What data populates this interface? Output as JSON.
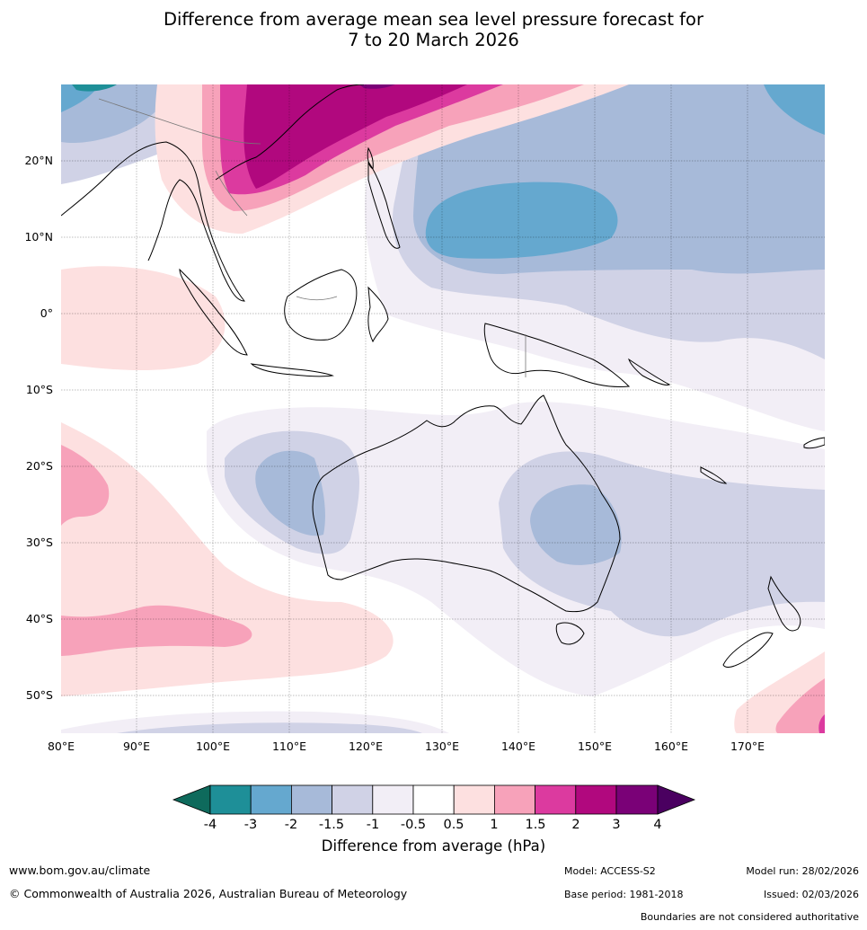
{
  "title_line1": "Difference from average mean sea level pressure forecast for",
  "title_line2": "7 to 20 March 2026",
  "map": {
    "lat_labels": [
      "20°N",
      "10°N",
      "0°",
      "10°S",
      "20°S",
      "30°S",
      "40°S",
      "50°S"
    ],
    "lon_labels": [
      "80°E",
      "90°E",
      "100°E",
      "110°E",
      "120°E",
      "130°E",
      "140°E",
      "150°E",
      "160°E",
      "170°E"
    ]
  },
  "colorbar": {
    "title": "Difference from average (hPa)",
    "ticks": [
      "-4",
      "-3",
      "-2",
      "-1.5",
      "-1",
      "-0.5",
      "0.5",
      "1",
      "1.5",
      "2",
      "3",
      "4"
    ],
    "colors": {
      "lt_m4": "#0e6a5c",
      "m4_m3": "#1e8f98",
      "m3_m2": "#65a8cf",
      "m2_m15": "#a7bad9",
      "m15_m1": "#d0d2e6",
      "m1_m05": "#f2eef6",
      "neutral": "#ffffff",
      "p05_p1": "#fde0e0",
      "p1_p15": "#f7a2ba",
      "p15_p2": "#dc3a9f",
      "p2_p3": "#b1087e",
      "p3_p4": "#7a0177",
      "gt_p4": "#4a0060"
    }
  },
  "footer": {
    "website": "www.bom.gov.au/climate",
    "copyright": "© Commonwealth of Australia 2026, Australian Bureau of Meteorology",
    "model": "Model: ACCESS-S2",
    "base_period": "Base period: 1981-2018",
    "model_run": "Model run: 28/02/2026",
    "issued": "Issued: 02/03/2026",
    "disclaimer": "Boundaries are not considered authoritative"
  }
}
